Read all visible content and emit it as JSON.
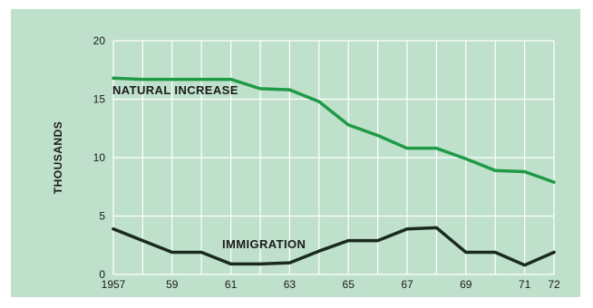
{
  "colors": {
    "panel": "#bfe1cc",
    "grid": "#ffffff",
    "natural_increase": "#1f9a46",
    "immigration": "#1b2a1f",
    "label_text": "#1a1a1a"
  },
  "chart_data": {
    "type": "line",
    "ylabel": "THOUSANDS",
    "xlabel": "",
    "grid": true,
    "ylim": [
      0,
      20
    ],
    "xlim": [
      1957,
      1972
    ],
    "x": [
      1957,
      1958,
      1959,
      1960,
      1961,
      1962,
      1963,
      1964,
      1965,
      1966,
      1967,
      1968,
      1969,
      1970,
      1971,
      1972
    ],
    "x_tick_labels": [
      {
        "x": 1957,
        "label": "1957"
      },
      {
        "x": 1959,
        "label": "59"
      },
      {
        "x": 1961,
        "label": "61"
      },
      {
        "x": 1963,
        "label": "63"
      },
      {
        "x": 1965,
        "label": "65"
      },
      {
        "x": 1967,
        "label": "67"
      },
      {
        "x": 1969,
        "label": "69"
      },
      {
        "x": 1971,
        "label": "71"
      },
      {
        "x": 1972,
        "label": "72"
      }
    ],
    "y_ticks": [
      0,
      5,
      10,
      15,
      20
    ],
    "y_tick_labels": [
      "0",
      "5",
      "10",
      "15",
      "20"
    ],
    "series": [
      {
        "key": "natural_increase",
        "name": "NATURAL INCREASE",
        "values": [
          16.8,
          16.7,
          16.7,
          16.7,
          16.7,
          15.9,
          15.8,
          14.8,
          12.8,
          11.9,
          10.8,
          10.8,
          9.9,
          8.9,
          8.8,
          7.9
        ]
      },
      {
        "key": "immigration",
        "name": "IMMIGRATION",
        "values": [
          3.9,
          2.9,
          1.9,
          1.9,
          0.9,
          0.9,
          1.0,
          2.0,
          2.9,
          2.9,
          3.9,
          4.0,
          1.9,
          1.9,
          0.8,
          1.9
        ]
      }
    ]
  }
}
